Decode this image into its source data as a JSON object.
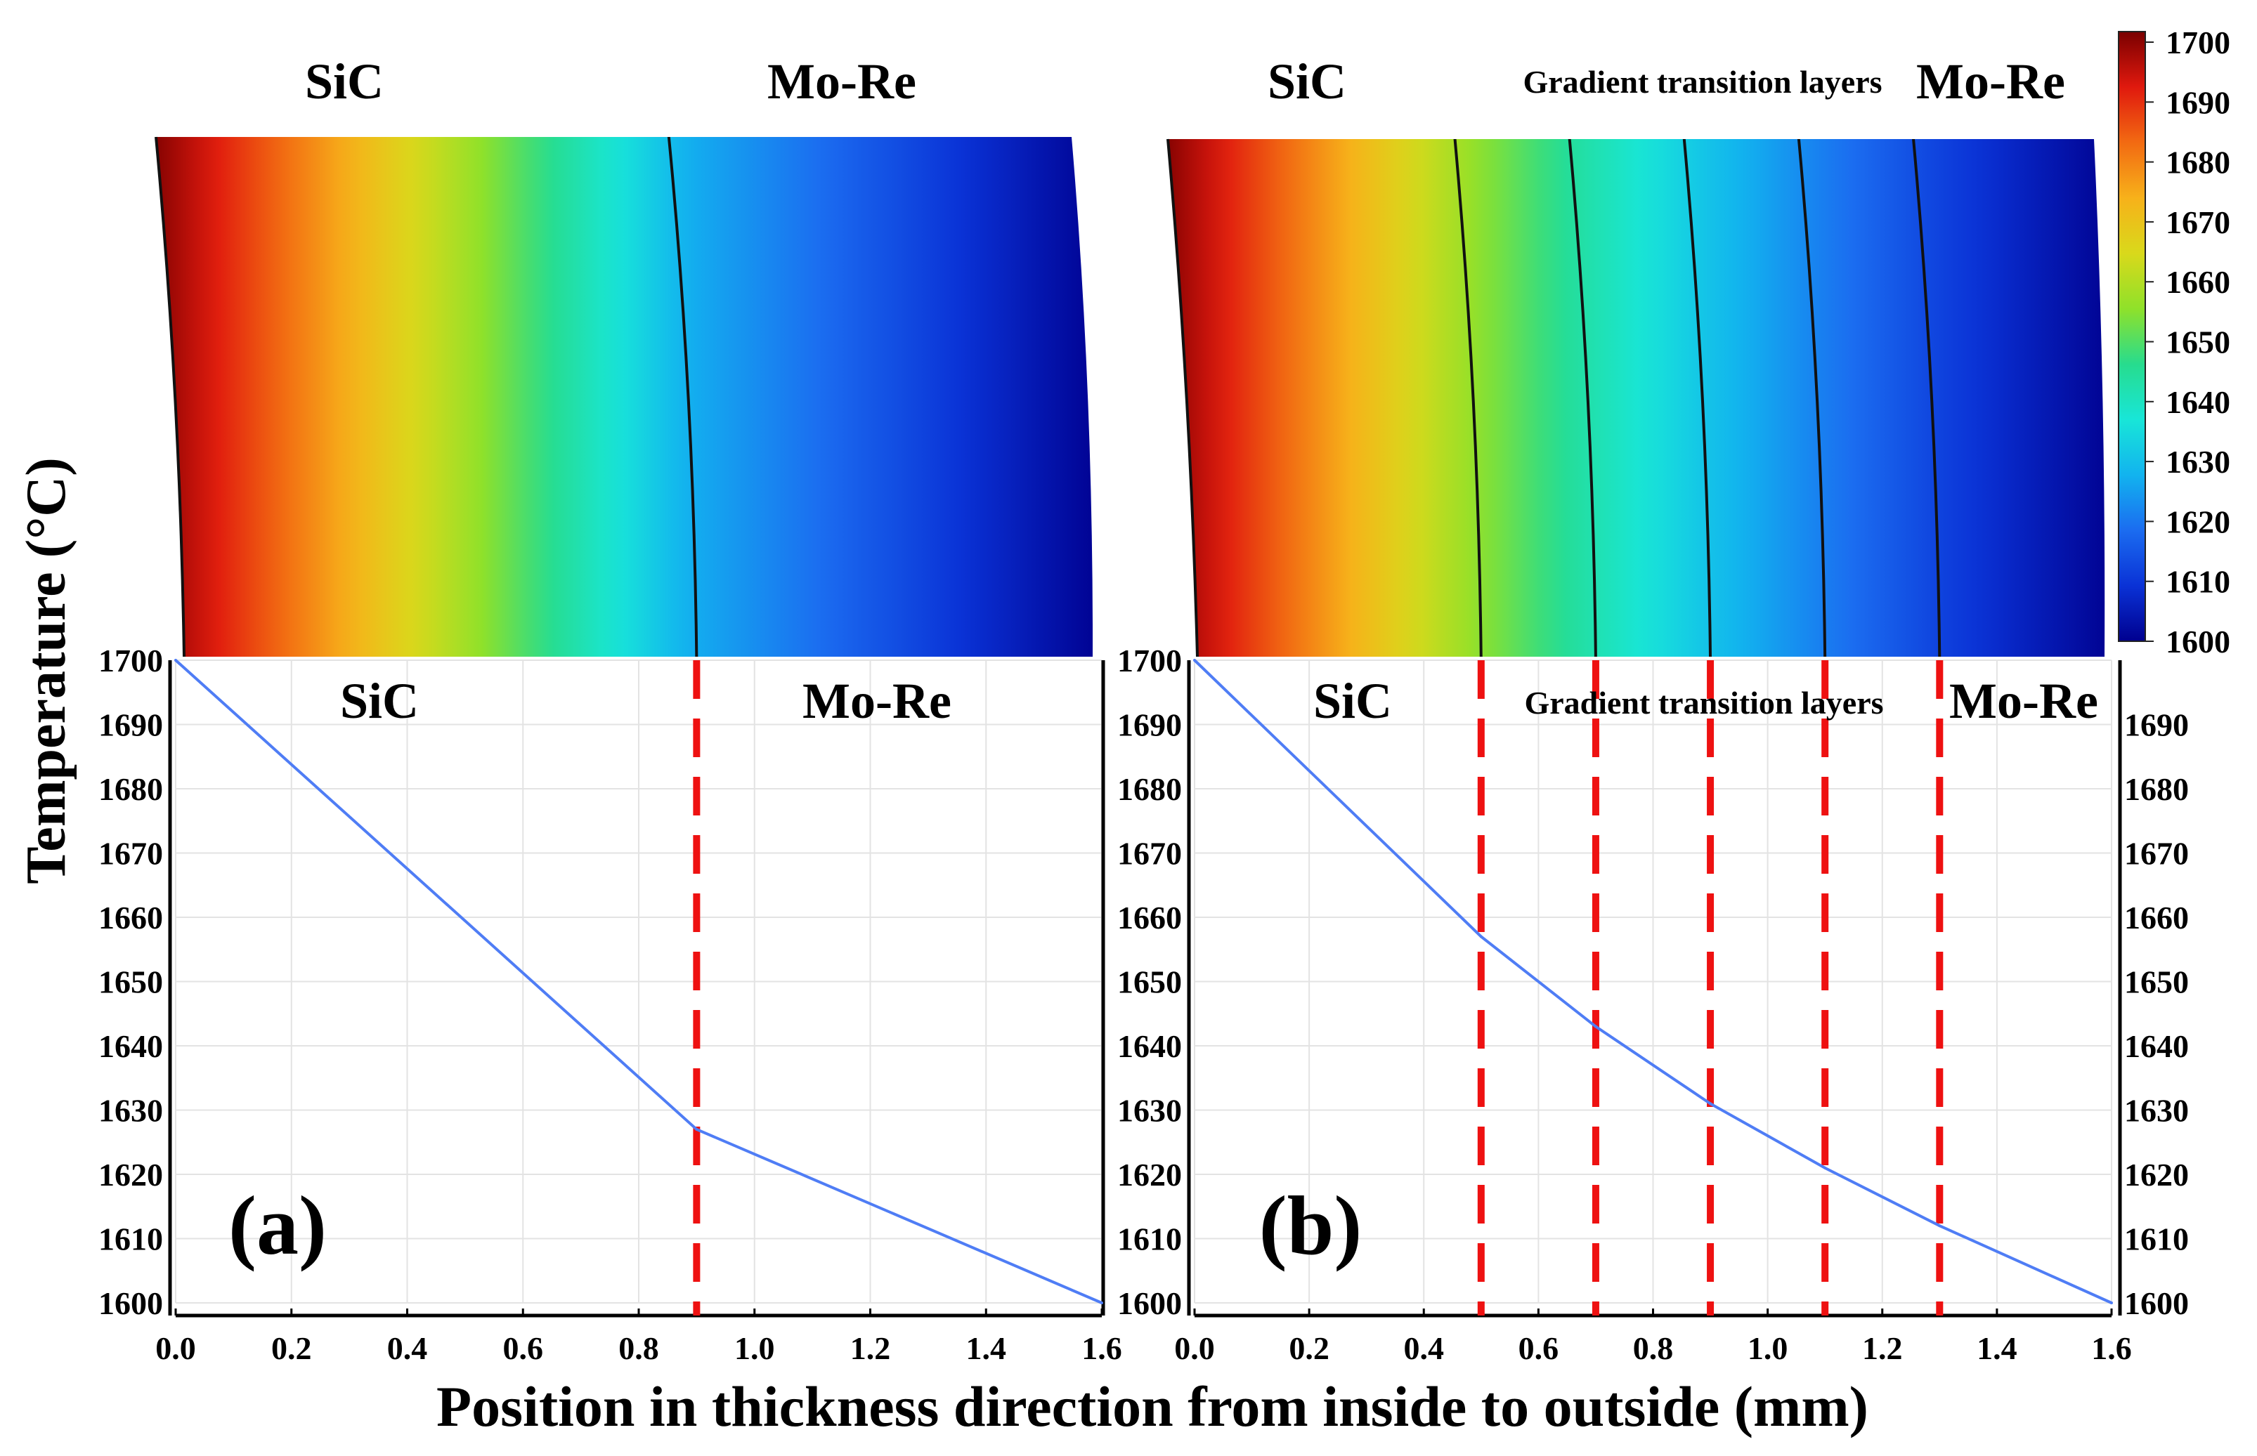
{
  "colors": {
    "colormap": [
      "#00008f",
      "#0a32d6",
      "#1b6cf0",
      "#12b3ef",
      "#18e6d8",
      "#27dc8e",
      "#8fe12a",
      "#d9d91b",
      "#f7b11a",
      "#f26a12",
      "#e0190e",
      "#7a0000"
    ],
    "curve": "#4f7df5",
    "boundary": "#ee1111",
    "grid": "#e3e3e3"
  },
  "labels": {
    "ylabel": "Temperature (°C)",
    "xlabel": "Position in thickness direction from inside to outside (mm)",
    "a": {
      "panel": "(a)",
      "left_material": "SiC",
      "right_material": "Mo-Re"
    },
    "b": {
      "panel": "(b)",
      "left_material": "SiC",
      "middle_material": "Gradient transition layers",
      "right_material": "Mo-Re"
    }
  },
  "colorbar": {
    "min": 1600,
    "max": 1700,
    "ticks": [
      "1700",
      "1690",
      "1680",
      "1670",
      "1660",
      "1650",
      "1640",
      "1630",
      "1620",
      "1610",
      "1600"
    ]
  },
  "chart_data": [
    {
      "id": "a",
      "type": "line",
      "title": "(a)",
      "xlabel": "Position in thickness direction from inside to outside (mm)",
      "ylabel": "Temperature (°C)",
      "xlim": [
        0,
        1.6
      ],
      "ylim": [
        1600,
        1700
      ],
      "xticks": [
        "0.0",
        "0.2",
        "0.4",
        "0.6",
        "0.8",
        "1.0",
        "1.2",
        "1.4",
        "1.6"
      ],
      "yticks": [
        "1700",
        "1690",
        "1680",
        "1670",
        "1660",
        "1650",
        "1640",
        "1630",
        "1620",
        "1610",
        "1600"
      ],
      "series": [
        {
          "name": "temperature",
          "x": [
            0.0,
            0.9,
            1.6
          ],
          "y": [
            1700,
            1627,
            1600
          ]
        }
      ],
      "boundaries": [
        0.9
      ],
      "regions": [
        "SiC",
        "Mo-Re"
      ]
    },
    {
      "id": "b",
      "type": "line",
      "title": "(b)",
      "xlabel": "Position in thickness direction from inside to outside (mm)",
      "ylabel": "Temperature (°C)",
      "xlim": [
        0,
        1.6
      ],
      "ylim": [
        1600,
        1700
      ],
      "xticks": [
        "0.0",
        "0.2",
        "0.4",
        "0.6",
        "0.8",
        "1.0",
        "1.2",
        "1.4",
        "1.6"
      ],
      "yticks_right": [
        "1690",
        "1680",
        "1670",
        "1660",
        "1650",
        "1640",
        "1630",
        "1620",
        "1610",
        "1600"
      ],
      "series": [
        {
          "name": "temperature",
          "x": [
            0.0,
            0.5,
            0.7,
            0.9,
            1.1,
            1.3,
            1.6
          ],
          "y": [
            1700,
            1657,
            1643,
            1631,
            1621,
            1612,
            1600
          ]
        }
      ],
      "boundaries": [
        0.5,
        0.7,
        0.9,
        1.1,
        1.3
      ],
      "regions": [
        "SiC",
        "Gradient transition layers",
        "Mo-Re"
      ]
    }
  ]
}
